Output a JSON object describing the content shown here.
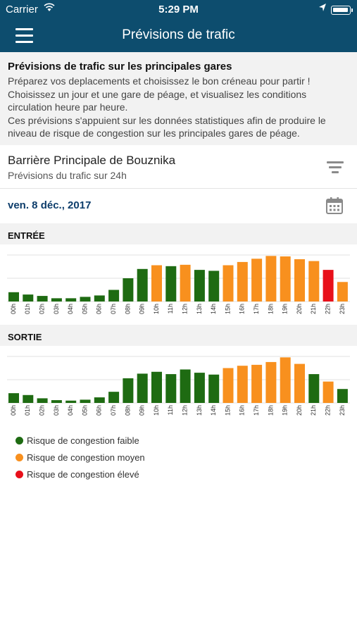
{
  "status_bar": {
    "carrier": "Carrier",
    "time": "5:29 PM"
  },
  "nav": {
    "title": "Prévisions de trafic"
  },
  "intro": {
    "title": "Prévisions de trafic sur les principales gares",
    "lines": [
      "Préparez vos deplacements et choisissez le bon créneau pour partir !",
      "Choisissez un jour et une gare de péage, et visualisez les conditions",
      "circulation heure par heure.",
      "Ces prévisions s'appuient sur les données statistiques afin de produire le",
      "niveau de risque de congestion sur les principales gares de péage."
    ]
  },
  "station": {
    "name": "Barrière Principale de Bouznika",
    "subtitle": "Prévisions du trafic sur 24h"
  },
  "date": "ven. 8 déc., 2017",
  "colors": {
    "faible": "#1e6b12",
    "moyen": "#f8901e",
    "eleve": "#e8101a",
    "header": "#0d4d6e"
  },
  "icons": {
    "menu": "hamburger-icon",
    "filter": "filter-icon",
    "calendar": "calendar-icon",
    "wifi": "wifi-icon",
    "location": "location-arrow-icon",
    "battery": "battery-icon"
  },
  "chart_data": [
    {
      "type": "bar",
      "title": "ENTRÉE",
      "categories": [
        "00h",
        "01h",
        "02h",
        "03h",
        "04h",
        "05h",
        "06h",
        "07h",
        "08h",
        "09h",
        "10h",
        "11h",
        "12h",
        "13h",
        "14h",
        "15h",
        "16h",
        "17h",
        "18h",
        "19h",
        "20h",
        "21h",
        "22h",
        "23h"
      ],
      "values": [
        20,
        15,
        12,
        7,
        7,
        10,
        13,
        25,
        50,
        70,
        78,
        76,
        79,
        68,
        66,
        78,
        85,
        92,
        98,
        97,
        91,
        87,
        68,
        42
      ],
      "risk": [
        "faible",
        "faible",
        "faible",
        "faible",
        "faible",
        "faible",
        "faible",
        "faible",
        "faible",
        "faible",
        "moyen",
        "faible",
        "moyen",
        "faible",
        "faible",
        "moyen",
        "moyen",
        "moyen",
        "moyen",
        "moyen",
        "moyen",
        "moyen",
        "eleve",
        "moyen"
      ],
      "ylim": [
        0,
        100
      ],
      "grid": true
    },
    {
      "type": "bar",
      "title": "SORTIE",
      "categories": [
        "00h",
        "01h",
        "02h",
        "03h",
        "04h",
        "05h",
        "06h",
        "07h",
        "08h",
        "09h",
        "10h",
        "11h",
        "12h",
        "13h",
        "14h",
        "15h",
        "16h",
        "17h",
        "18h",
        "19h",
        "20h",
        "21h",
        "22h",
        "23h"
      ],
      "values": [
        21,
        17,
        10,
        6,
        5,
        7,
        12,
        24,
        53,
        63,
        67,
        62,
        72,
        65,
        61,
        75,
        80,
        82,
        88,
        98,
        84,
        62,
        46,
        30
      ],
      "risk": [
        "faible",
        "faible",
        "faible",
        "faible",
        "faible",
        "faible",
        "faible",
        "faible",
        "faible",
        "faible",
        "faible",
        "faible",
        "faible",
        "faible",
        "faible",
        "moyen",
        "moyen",
        "moyen",
        "moyen",
        "moyen",
        "moyen",
        "faible",
        "moyen",
        "faible"
      ],
      "ylim": [
        0,
        100
      ],
      "grid": true
    }
  ],
  "legend": [
    {
      "label": "Risque de congestion faible",
      "risk": "faible"
    },
    {
      "label": "Risque de congestion moyen",
      "risk": "moyen"
    },
    {
      "label": "Risque de congestion élevé",
      "risk": "eleve"
    }
  ]
}
